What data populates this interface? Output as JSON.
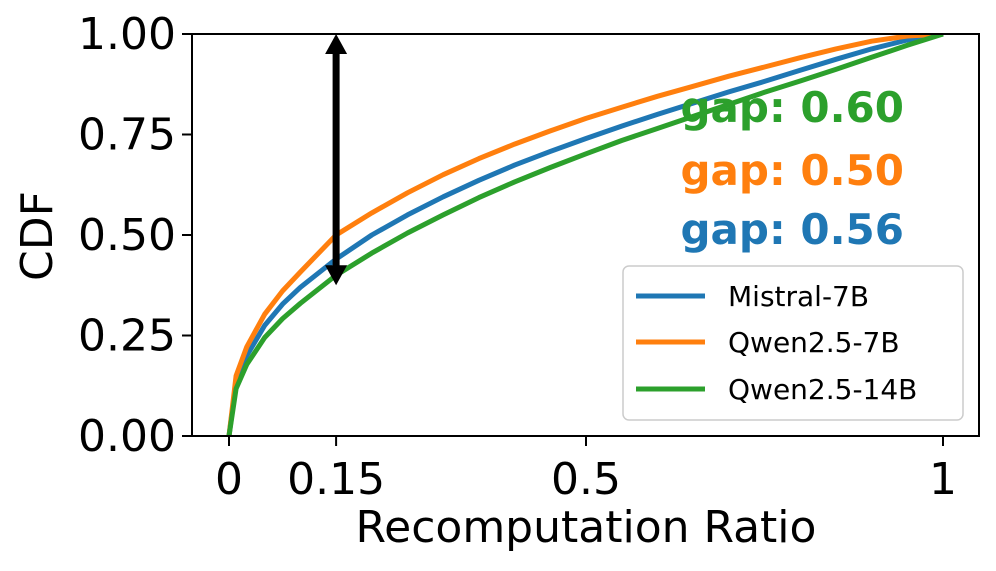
{
  "chart_data": {
    "type": "line",
    "xlabel": "Recomputation Ratio",
    "ylabel": "CDF",
    "xlim": [
      -0.05,
      1.05
    ],
    "ylim": [
      0,
      1
    ],
    "x_ticks": [
      {
        "value": 0,
        "label": "0"
      },
      {
        "value": 0.15,
        "label": "0.15"
      },
      {
        "value": 0.5,
        "label": "0.5"
      },
      {
        "value": 1,
        "label": "1"
      }
    ],
    "y_ticks": [
      {
        "value": 0,
        "label": "0.00"
      },
      {
        "value": 0.25,
        "label": "0.25"
      },
      {
        "value": 0.5,
        "label": "0.50"
      },
      {
        "value": 0.75,
        "label": "0.75"
      },
      {
        "value": 1,
        "label": "1.00"
      }
    ],
    "grid": false,
    "legend_position": "lower-right",
    "series": [
      {
        "name": "Mistral-7B",
        "color": "#1f77b4",
        "x": [
          0,
          0.01,
          0.025,
          0.05,
          0.075,
          0.1,
          0.15,
          0.2,
          0.25,
          0.3,
          0.35,
          0.4,
          0.45,
          0.5,
          0.55,
          0.6,
          0.65,
          0.7,
          0.75,
          0.8,
          0.85,
          0.9,
          0.95,
          1
        ],
        "y": [
          0,
          0.133,
          0.2,
          0.275,
          0.328,
          0.37,
          0.44,
          0.5,
          0.55,
          0.595,
          0.636,
          0.674,
          0.708,
          0.74,
          0.771,
          0.8,
          0.828,
          0.856,
          0.882,
          0.91,
          0.937,
          0.963,
          0.985,
          1
        ]
      },
      {
        "name": "Qwen2.5-7B",
        "color": "#ff7f0e",
        "x": [
          0,
          0.01,
          0.025,
          0.05,
          0.075,
          0.1,
          0.15,
          0.2,
          0.25,
          0.3,
          0.35,
          0.4,
          0.45,
          0.5,
          0.55,
          0.6,
          0.65,
          0.7,
          0.75,
          0.8,
          0.85,
          0.9,
          0.95,
          1
        ],
        "y": [
          0,
          0.15,
          0.222,
          0.303,
          0.361,
          0.408,
          0.5,
          0.555,
          0.605,
          0.65,
          0.69,
          0.726,
          0.759,
          0.79,
          0.818,
          0.845,
          0.87,
          0.895,
          0.918,
          0.941,
          0.963,
          0.982,
          0.995,
          1
        ]
      },
      {
        "name": "Qwen2.5-14B",
        "color": "#2ca02c",
        "x": [
          0,
          0.01,
          0.025,
          0.05,
          0.075,
          0.1,
          0.15,
          0.2,
          0.25,
          0.3,
          0.35,
          0.4,
          0.45,
          0.5,
          0.55,
          0.6,
          0.65,
          0.7,
          0.75,
          0.8,
          0.85,
          0.9,
          0.95,
          1
        ],
        "y": [
          0,
          0.118,
          0.178,
          0.245,
          0.292,
          0.33,
          0.4,
          0.455,
          0.505,
          0.55,
          0.593,
          0.632,
          0.668,
          0.702,
          0.735,
          0.765,
          0.795,
          0.825,
          0.855,
          0.883,
          0.912,
          0.942,
          0.972,
          1
        ]
      }
    ],
    "annotations": {
      "arrow": {
        "x": 0.15,
        "y_from": 0.4,
        "y_to": 1.0,
        "color": "#000000"
      },
      "gap_labels": [
        {
          "text": "gap: 0.60",
          "color": "#2ca02c"
        },
        {
          "text": "gap: 0.50",
          "color": "#ff7f0e"
        },
        {
          "text": "gap: 0.56",
          "color": "#1f77b4"
        }
      ]
    }
  }
}
